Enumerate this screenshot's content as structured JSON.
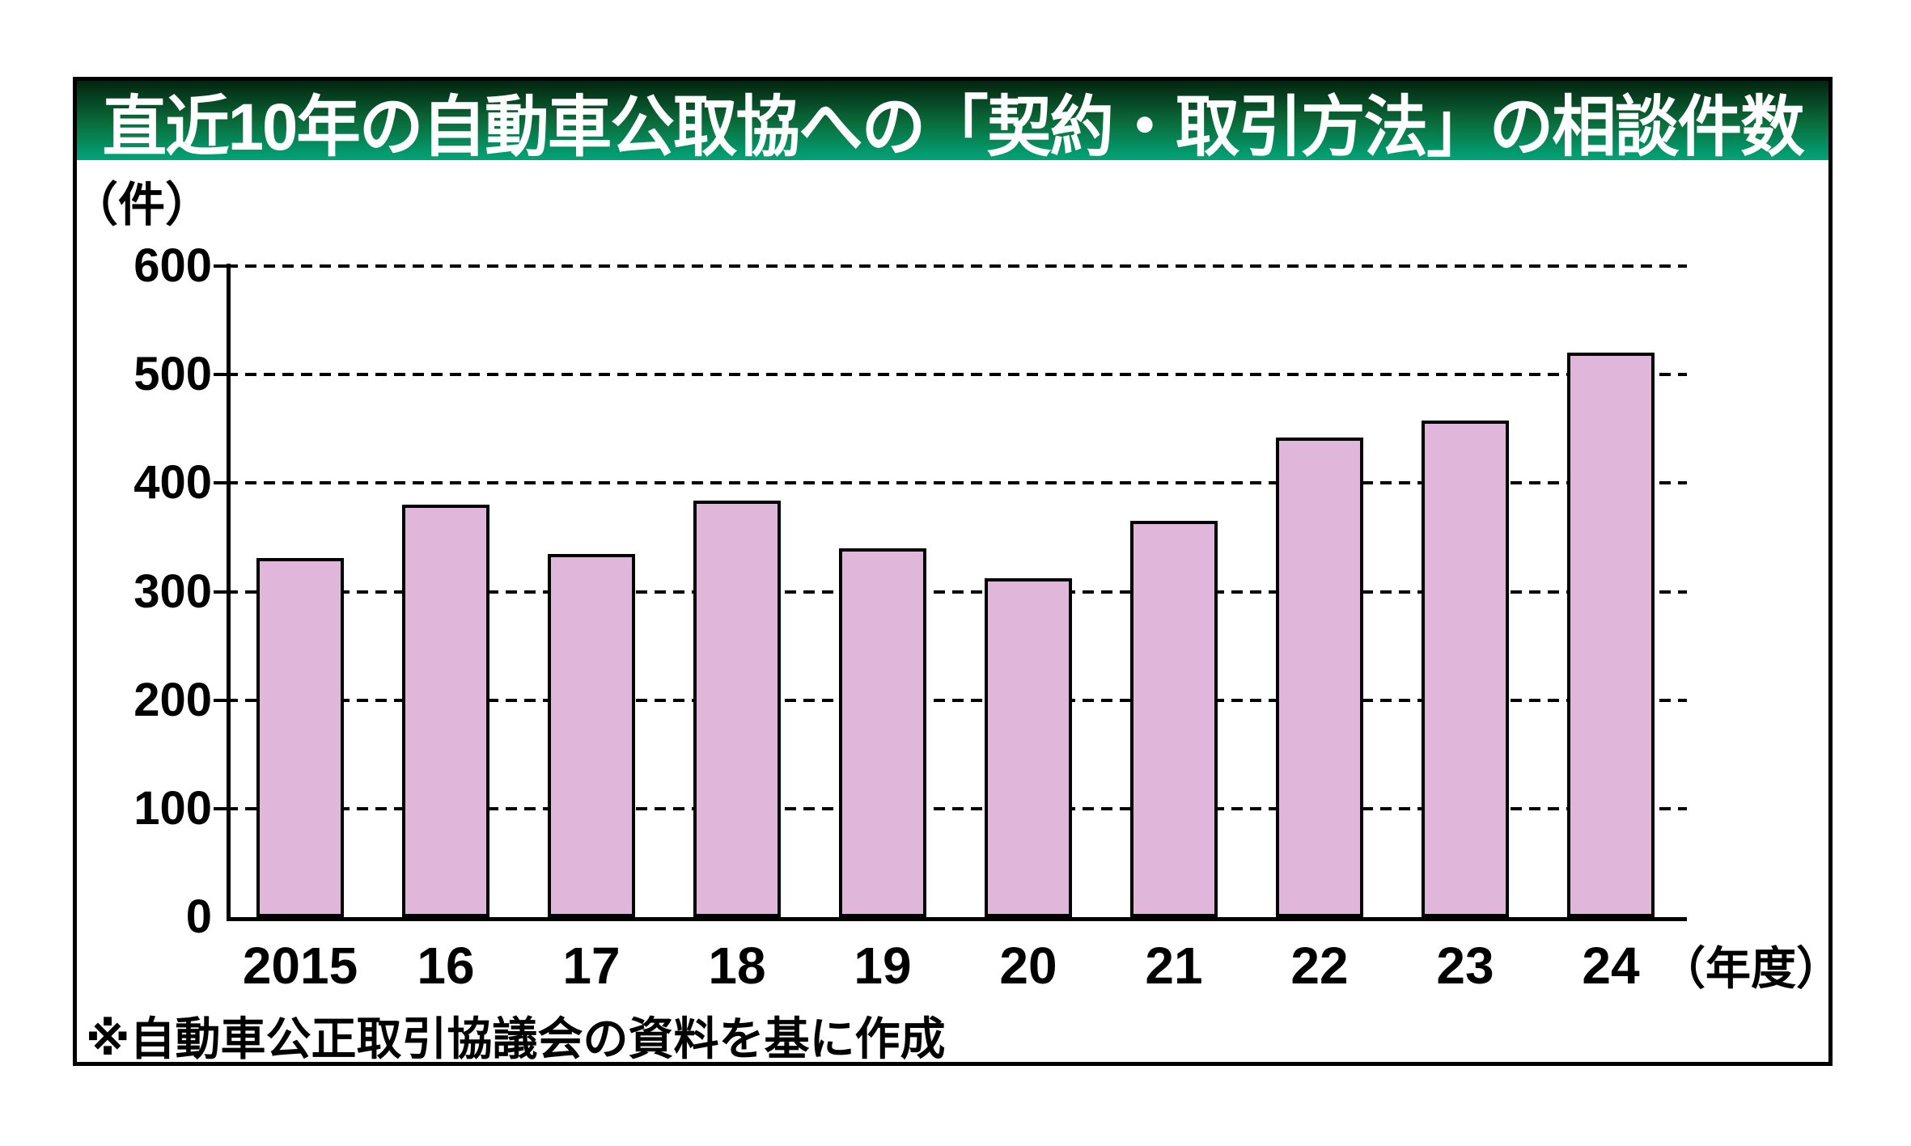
{
  "header": {
    "title": "直近10年の自動車公取協への「契約・取引方法」の相談件数",
    "gradient_top": "#03240f",
    "gradient_mid": "#0b6b3a",
    "gradient_bottom": "#00a57a"
  },
  "footnote": "※自動車公正取引協議会の資料を基に作成",
  "chart_data": {
    "type": "bar",
    "title": "直近10年の自動車公取協への「契約・取引方法」の相談件数",
    "unit_label": "（件）",
    "axis_suffix": "（年度）",
    "categories": [
      "2015",
      "16",
      "17",
      "18",
      "19",
      "20",
      "21",
      "22",
      "23",
      "24"
    ],
    "values": [
      331,
      380,
      335,
      384,
      340,
      312,
      365,
      442,
      458,
      520
    ],
    "xlabel": "年度",
    "ylabel": "件",
    "ylim": [
      0,
      600
    ],
    "ytick_step": 100,
    "yticks": [
      0,
      100,
      200,
      300,
      400,
      500,
      600
    ],
    "grid": "horizontal-dashed",
    "legend": "none",
    "bar_color": "#e0b6db",
    "bar_border_color": "#000000",
    "grid_color": "#000000",
    "axis_color": "#000000"
  }
}
